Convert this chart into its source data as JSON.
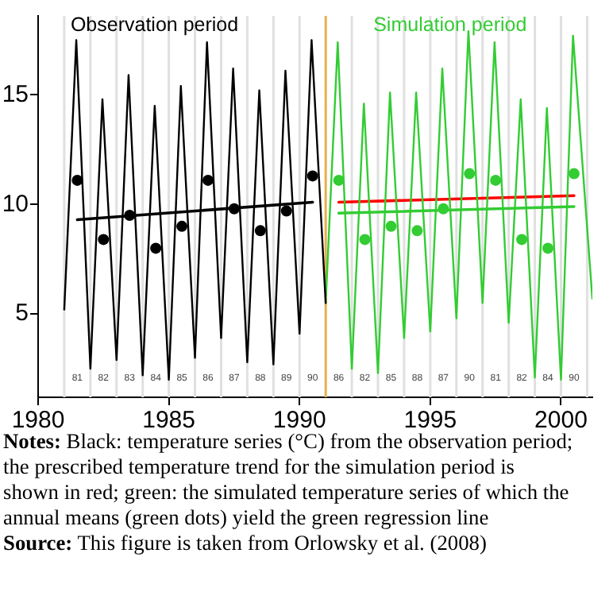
{
  "chart_data": {
    "type": "line",
    "xlim": [
      1980,
      2001.2
    ],
    "xticks": [
      1980,
      1985,
      1990,
      1995,
      2000
    ],
    "ylim": [
      1.2,
      18.6
    ],
    "yticks": [
      5,
      10,
      15
    ],
    "marker": "none",
    "series": [
      {
        "name": "Observation period",
        "type": "line",
        "color": "#000000",
        "x": [
          1981,
          1981.46,
          1982,
          1982.46,
          1983,
          1983.46,
          1984,
          1984.46,
          1985,
          1985.46,
          1986,
          1986.46,
          1987,
          1987.46,
          1988,
          1988.46,
          1989,
          1989.46,
          1990,
          1990.46,
          1991
        ],
        "values": [
          5.2,
          17.5,
          2.5,
          14.8,
          2.9,
          15.9,
          2.2,
          14.5,
          2.0,
          15.4,
          3.0,
          17.4,
          3.9,
          16.2,
          2.8,
          15.2,
          2.7,
          16.1,
          4.1,
          17.5,
          5.5
        ]
      },
      {
        "name": "Simulation period",
        "type": "line",
        "color": "#33cc33",
        "x": [
          1991,
          1991.46,
          1992,
          1992.46,
          1993,
          1993.46,
          1994,
          1994.46,
          1995,
          1995.46,
          1996,
          1996.46,
          1997,
          1997.46,
          1998,
          1998.46,
          1999,
          1999.46,
          2000,
          2000.46,
          2001.2
        ],
        "values": [
          5.5,
          17.4,
          2.5,
          14.6,
          2.3,
          15.1,
          3.9,
          15.1,
          4.2,
          16.2,
          4.8,
          17.9,
          5.5,
          17.4,
          4.6,
          14.8,
          2.1,
          14.4,
          2.0,
          17.7,
          5.7
        ]
      },
      {
        "type": "scatter",
        "marker": "circle",
        "color": "#000000",
        "x": [
          1981.5,
          1982.5,
          1983.5,
          1984.5,
          1985.5,
          1986.5,
          1987.5,
          1988.5,
          1989.5,
          1990.5
        ],
        "values": [
          11.1,
          8.4,
          9.5,
          8.0,
          9.0,
          11.1,
          9.8,
          8.8,
          9.7,
          11.3
        ]
      },
      {
        "type": "scatter",
        "marker": "circle",
        "color": "#33cc33",
        "x": [
          1991.5,
          1992.5,
          1993.5,
          1994.5,
          1995.5,
          1996.5,
          1997.5,
          1998.5,
          1999.5,
          2000.5
        ],
        "values": [
          11.1,
          8.4,
          9.0,
          8.8,
          9.8,
          11.4,
          11.1,
          8.4,
          8.0,
          11.4
        ]
      },
      {
        "type": "line",
        "color": "#000000",
        "x": [
          1981.5,
          1990.5
        ],
        "values": [
          9.3,
          10.1
        ]
      },
      {
        "type": "line",
        "color": "#ff0000",
        "x": [
          1991.5,
          2000.5
        ],
        "values": [
          10.1,
          10.4
        ]
      },
      {
        "type": "line",
        "color": "#33cc33",
        "x": [
          1991.5,
          2000.5
        ],
        "values": [
          9.6,
          9.9
        ]
      }
    ],
    "ref_lines": [
      {
        "axis": "x",
        "value": 1981,
        "color": "#e0e0e0"
      },
      {
        "axis": "x",
        "value": 1982,
        "color": "#e0e0e0"
      },
      {
        "axis": "x",
        "value": 1983,
        "color": "#e0e0e0"
      },
      {
        "axis": "x",
        "value": 1984,
        "color": "#e0e0e0"
      },
      {
        "axis": "x",
        "value": 1985,
        "color": "#e0e0e0"
      },
      {
        "axis": "x",
        "value": 1986,
        "color": "#e0e0e0"
      },
      {
        "axis": "x",
        "value": 1987,
        "color": "#e0e0e0"
      },
      {
        "axis": "x",
        "value": 1988,
        "color": "#e0e0e0"
      },
      {
        "axis": "x",
        "value": 1989,
        "color": "#e0e0e0"
      },
      {
        "axis": "x",
        "value": 1990,
        "color": "#e0e0e0"
      },
      {
        "axis": "x",
        "value": 1992,
        "color": "#e0e0e0"
      },
      {
        "axis": "x",
        "value": 1993,
        "color": "#e0e0e0"
      },
      {
        "axis": "x",
        "value": 1994,
        "color": "#e0e0e0"
      },
      {
        "axis": "x",
        "value": 1995,
        "color": "#e0e0e0"
      },
      {
        "axis": "x",
        "value": 1996,
        "color": "#e0e0e0"
      },
      {
        "axis": "x",
        "value": 1997,
        "color": "#e0e0e0"
      },
      {
        "axis": "x",
        "value": 1998,
        "color": "#e0e0e0"
      },
      {
        "axis": "x",
        "value": 1999,
        "color": "#e0e0e0"
      },
      {
        "axis": "x",
        "value": 2000,
        "color": "#e0e0e0"
      },
      {
        "axis": "x",
        "value": 2001,
        "color": "#e0e0e0"
      },
      {
        "axis": "x",
        "value": 1991,
        "color": "#e6b04a"
      }
    ],
    "annotations": [
      "81",
      "82",
      "83",
      "84",
      "85",
      "86",
      "87",
      "88",
      "89",
      "90",
      "86",
      "82",
      "85",
      "88",
      "87",
      "90",
      "81",
      "82",
      "84",
      "90",
      "Notes: Black: temperature series (°C) from the observation period; the prescribed temperature trend for the simulation period is shown in red; green: the simulated temperature series of which the annual means (green dots) yield the green regression line",
      "Source: This figure is taken from Orlowsky et al. (2008)"
    ]
  }
}
